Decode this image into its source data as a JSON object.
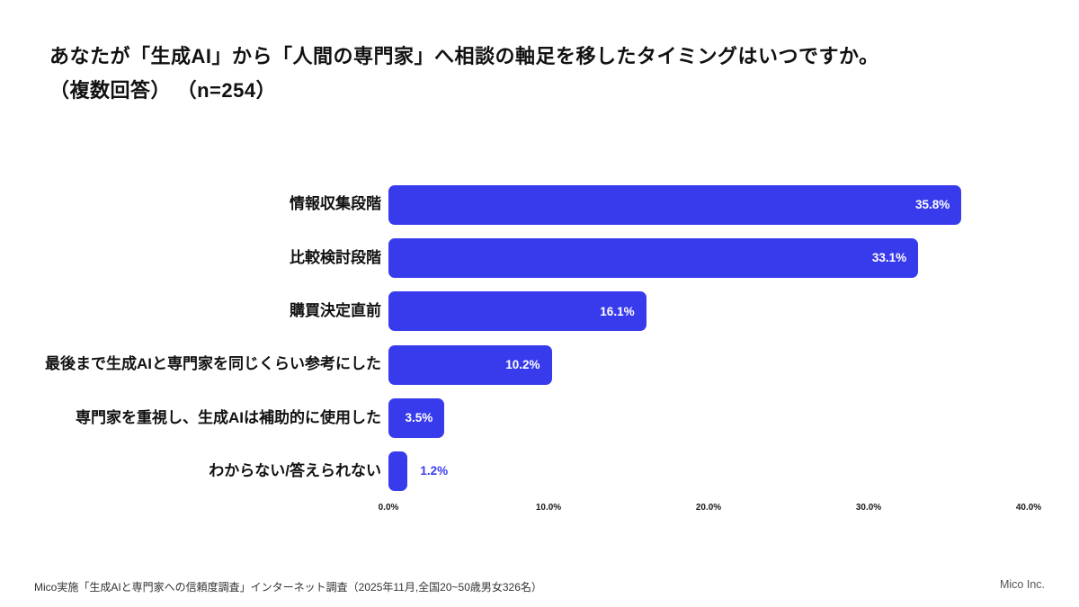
{
  "title": {
    "line1": "あなたが「生成AI」から「人間の専門家」へ相談の軸足を移したタイミングはいつですか。",
    "line2": "（複数回答） （n=254）"
  },
  "chart_data": {
    "type": "bar",
    "orientation": "horizontal",
    "title": "あなたが「生成AI」から「人間の専門家」へ相談の軸足を移したタイミングはいつですか。（複数回答）（n=254）",
    "categories": [
      "情報収集段階",
      "比較検討段階",
      "購買決定直前",
      "最後まで生成AIと専門家を同じくらい参考にした",
      "専門家を重視し、生成AIは補助的に使用した",
      "わからない/答えられない"
    ],
    "values": [
      35.8,
      33.1,
      16.1,
      10.2,
      3.5,
      1.2
    ],
    "value_labels": [
      "35.8%",
      "33.1%",
      "16.1%",
      "10.2%",
      "3.5%",
      "1.2%"
    ],
    "xlabel": "",
    "ylabel": "",
    "xlim": [
      0,
      40
    ],
    "x_ticks": [
      "0.0%",
      "10.0%",
      "20.0%",
      "30.0%",
      "40.0%"
    ],
    "x_tick_values": [
      0,
      10,
      20,
      30,
      40
    ],
    "bar_color": "#383BEC",
    "value_label_inside_color": "#ffffff",
    "value_label_outside_color": "#383BEC",
    "grid": false,
    "legend": false
  },
  "footer": {
    "source": "Mico実施「生成AIと専門家への信頼度調査」インターネット調査（2025年11月,全国20~50歳男女326名）",
    "company": "Mico Inc."
  }
}
